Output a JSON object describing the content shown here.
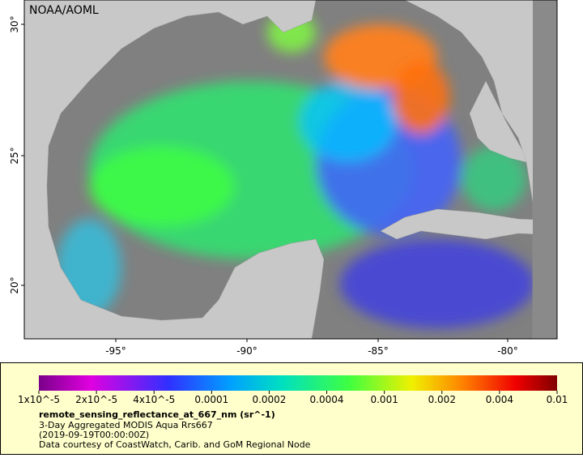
{
  "map": {
    "credit": "NOAA/AOML",
    "lat_labels": [
      "30°",
      "25°",
      "20°"
    ],
    "lon_labels": [
      "-95°",
      "-90°",
      "-85°",
      "-80°"
    ]
  },
  "colorbar": {
    "labels": [
      "1x10^-5",
      "2x10^-5",
      "4x10^-5",
      "0.0001",
      "0.0002",
      "0.0004",
      "0.001",
      "0.002",
      "0.004",
      "0.01"
    ]
  },
  "legend": {
    "variable": "remote_sensing_reflectance_at_667_nm (sr^-1)",
    "description": "3-Day Aggregated MODIS Aqua Rrs667",
    "time": "(2019-09-19T00:00:00Z)",
    "source": "Data courtesy of CoastWatch, Carib. and GoM Regional Node"
  }
}
